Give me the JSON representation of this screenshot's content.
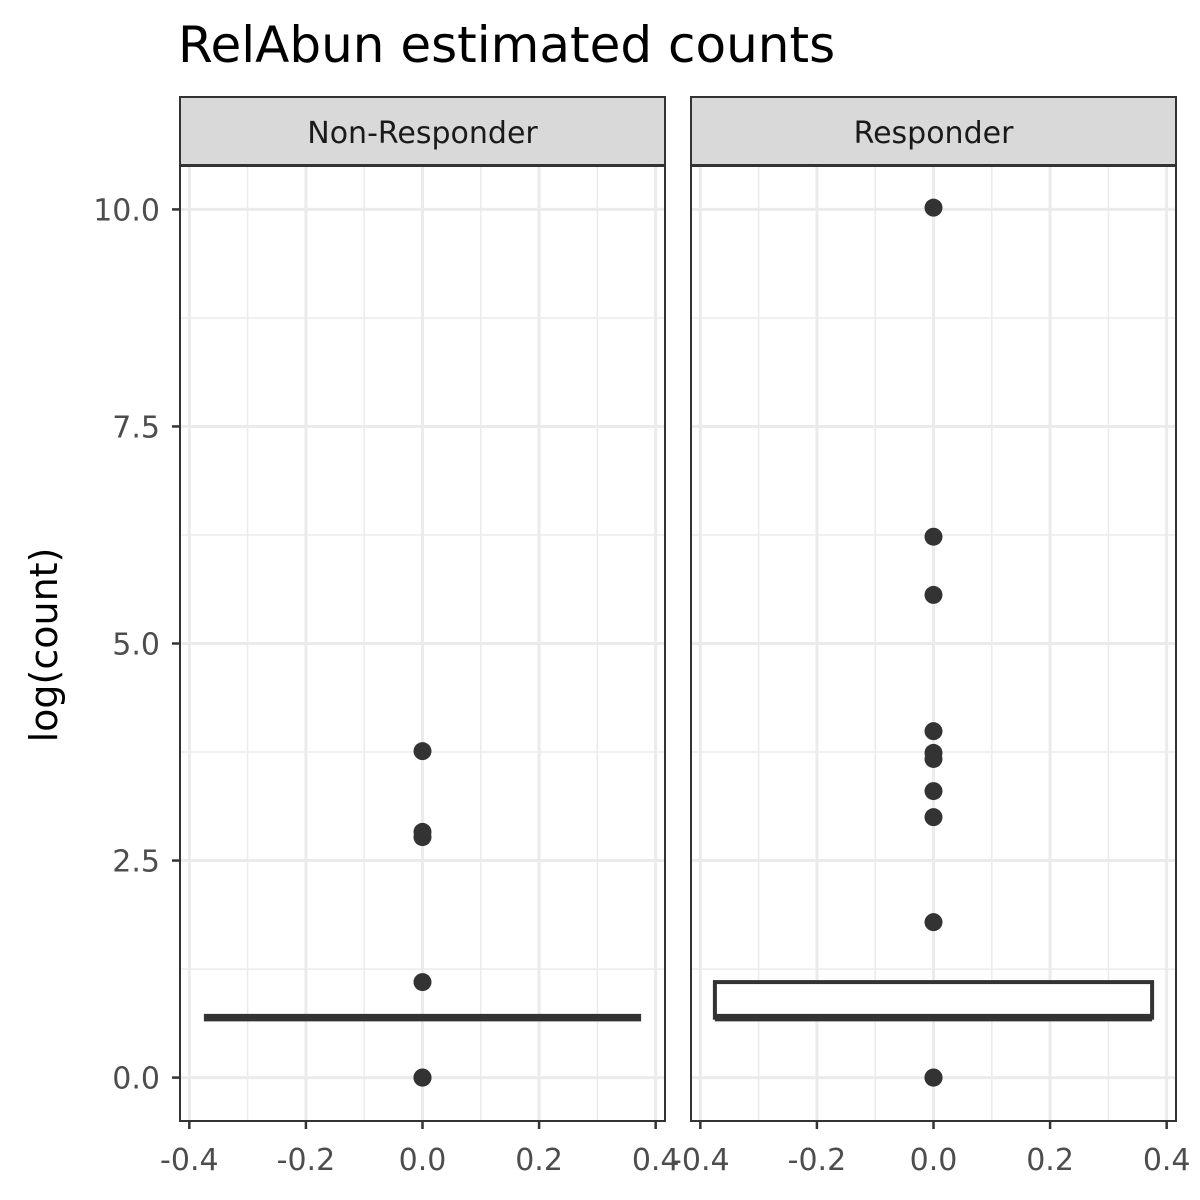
{
  "chart_data": {
    "type": "boxplot",
    "title": "RelAbun estimated counts",
    "xlabel": "",
    "ylabel": "log(count)",
    "xlim": [
      -0.4,
      0.4
    ],
    "ylim": [
      -0.5,
      10.5
    ],
    "x_ticks": [
      -0.4,
      -0.2,
      0.0,
      0.2,
      0.4
    ],
    "x_tick_labels": [
      "-0.4",
      "-0.2",
      "0.0",
      "0.2",
      "0.4"
    ],
    "y_ticks": [
      0.0,
      2.5,
      5.0,
      7.5,
      10.0
    ],
    "y_tick_labels": [
      "0.0",
      "2.5",
      "5.0",
      "7.5",
      "10.0"
    ],
    "grid": true,
    "colors": {
      "ink": "#333333",
      "grid": "#ebebeb",
      "strip": "#d9d9d9",
      "tick_text": "#4d4d4d"
    },
    "panels": [
      {
        "name": "Non-Responder",
        "box": {
          "q1": 0.69,
          "median": 0.69,
          "q3": 0.69,
          "xmin": -0.375,
          "xmax": 0.375
        },
        "outliers_x": 0.0,
        "outliers_y": [
          3.76,
          2.83,
          2.77,
          1.1,
          0.0,
          0.0
        ]
      },
      {
        "name": "Responder",
        "box": {
          "q1": 0.69,
          "median": 0.69,
          "q3": 1.1,
          "xmin": -0.375,
          "xmax": 0.375
        },
        "outliers_x": 0.0,
        "outliers_y": [
          10.02,
          6.23,
          5.56,
          3.99,
          3.74,
          3.67,
          3.3,
          3.0,
          1.79,
          0.0,
          0.0
        ]
      }
    ]
  }
}
